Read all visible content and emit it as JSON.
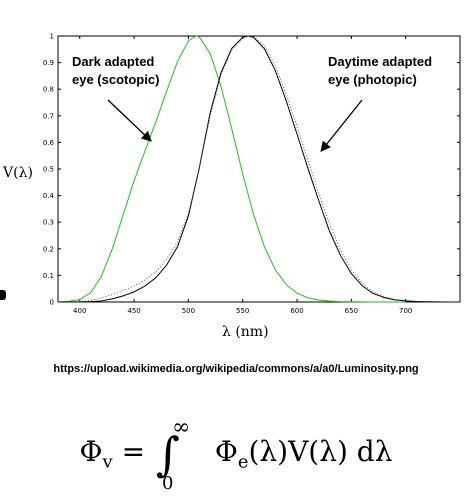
{
  "chart_data": {
    "type": "line",
    "ylabel": "V(λ)",
    "xlabel": "λ (nm)",
    "xlim": [
      380,
      750
    ],
    "ylim": [
      0,
      1
    ],
    "x_ticks": [
      400,
      450,
      500,
      550,
      600,
      650,
      700
    ],
    "y_ticks": [
      0,
      0.1,
      0.2,
      0.3,
      0.4,
      0.5,
      0.6,
      0.7,
      0.8,
      0.9,
      1
    ],
    "y_tick_labels": [
      "0",
      "0.1",
      "0.2",
      "0.3",
      "0.4",
      "0.5",
      "0.6",
      "0.7",
      "0.8",
      "0.9",
      "1"
    ],
    "grid": false,
    "series": [
      {
        "style": "scotopic",
        "color": "#22bb22",
        "x": [
          380,
          390,
          400,
          410,
          420,
          430,
          440,
          450,
          460,
          470,
          480,
          490,
          500,
          507,
          510,
          520,
          530,
          540,
          550,
          560,
          570,
          580,
          590,
          600,
          610,
          620,
          630,
          640,
          650,
          660,
          670,
          680,
          690,
          700
        ],
        "y": [
          0.0006,
          0.0022,
          0.0093,
          0.0348,
          0.0966,
          0.1998,
          0.3281,
          0.455,
          0.567,
          0.676,
          0.793,
          0.904,
          0.982,
          1.0,
          0.997,
          0.935,
          0.811,
          0.65,
          0.481,
          0.3288,
          0.2076,
          0.1212,
          0.0655,
          0.0332,
          0.0159,
          0.0074,
          0.0033,
          0.0015,
          0.0007,
          0.0003,
          0.0001,
          0.0001,
          0.0,
          0.0
        ]
      },
      {
        "style": "photopic",
        "color": "#000000",
        "x": [
          380,
          390,
          400,
          410,
          420,
          430,
          440,
          450,
          460,
          470,
          480,
          490,
          500,
          510,
          520,
          530,
          540,
          550,
          555,
          560,
          570,
          580,
          590,
          600,
          610,
          620,
          630,
          640,
          650,
          660,
          670,
          680,
          690,
          700,
          710,
          720,
          730,
          740,
          750
        ],
        "y": [
          0.0,
          0.0001,
          0.0004,
          0.0012,
          0.004,
          0.0116,
          0.023,
          0.038,
          0.06,
          0.091,
          0.139,
          0.208,
          0.323,
          0.503,
          0.71,
          0.862,
          0.954,
          0.995,
          1.0,
          0.995,
          0.952,
          0.87,
          0.757,
          0.631,
          0.503,
          0.381,
          0.265,
          0.175,
          0.107,
          0.061,
          0.032,
          0.017,
          0.0082,
          0.0041,
          0.0021,
          0.001,
          0.0005,
          0.0002,
          0.0001
        ]
      },
      {
        "style": "photopic-dotted",
        "color": "#444444",
        "x": [
          380,
          390,
          400,
          410,
          420,
          430,
          440,
          450,
          460,
          470,
          480,
          490,
          500,
          510,
          520,
          530,
          540,
          550,
          555,
          560,
          570,
          580,
          590,
          600,
          610,
          620,
          630,
          640,
          650,
          660,
          670,
          680,
          690,
          700,
          710,
          720,
          730,
          740,
          750
        ],
        "y": [
          0.0,
          0.0004,
          0.0015,
          0.006,
          0.015,
          0.028,
          0.043,
          0.06,
          0.083,
          0.114,
          0.16,
          0.225,
          0.333,
          0.502,
          0.698,
          0.852,
          0.949,
          0.993,
          1.0,
          0.998,
          0.962,
          0.888,
          0.782,
          0.66,
          0.533,
          0.41,
          0.293,
          0.195,
          0.122,
          0.07,
          0.038,
          0.02,
          0.0098,
          0.0048,
          0.0023,
          0.0011,
          0.0005,
          0.0002,
          0.0001
        ]
      }
    ],
    "annotations": [
      {
        "text_lines": [
          "Dark adapted",
          "eye (scotopic)"
        ]
      },
      {
        "text_lines": [
          "Daytime adapted",
          "eye (photopic)"
        ]
      }
    ]
  },
  "source_text": "https://upload.wikimedia.org/wikipedia/commons/a/a0/Luminosity.png",
  "formula": {
    "lhs": "Φ",
    "lhs_sub": "v",
    "eq": "=",
    "integral": "∫",
    "upper": "∞",
    "lower": "0",
    "rhs": "Φ",
    "rhs_sub": "e",
    "rhs_rest": "(λ)V(λ) dλ"
  }
}
